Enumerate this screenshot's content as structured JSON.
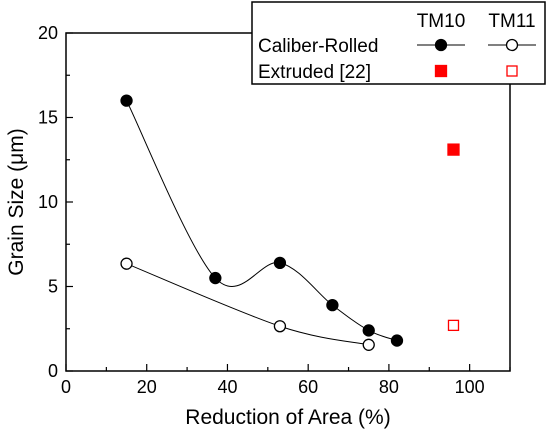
{
  "chart_data": {
    "type": "scatter",
    "xlabel": "Reduction of Area (%)",
    "ylabel": "Grain Size (μm)",
    "xlim": [
      0,
      110
    ],
    "ylim": [
      0,
      20
    ],
    "xticks": [
      0,
      20,
      40,
      60,
      80,
      100
    ],
    "yticks": [
      0,
      5,
      10,
      15,
      20
    ],
    "grid": false,
    "legend_position": "top-right",
    "legend": {
      "columns": [
        "TM10",
        "TM11"
      ],
      "rows": [
        "Caliber-Rolled",
        "Extruded [22]"
      ]
    },
    "series": [
      {
        "material": "TM10",
        "process": "Caliber-Rolled",
        "marker": "filled-circle",
        "color": "#000000",
        "smooth_line": true,
        "x": [
          15,
          37,
          53,
          66,
          75,
          82
        ],
        "y": [
          16.0,
          5.5,
          6.4,
          3.9,
          2.4,
          1.8
        ]
      },
      {
        "material": "TM11",
        "process": "Caliber-Rolled",
        "marker": "open-circle",
        "color": "#000000",
        "smooth_line": true,
        "x": [
          15,
          53,
          75
        ],
        "y": [
          6.35,
          2.65,
          1.55
        ]
      },
      {
        "material": "TM10",
        "process": "Extruded [22]",
        "marker": "filled-square",
        "color": "#ff0000",
        "smooth_line": false,
        "x": [
          96
        ],
        "y": [
          13.1
        ]
      },
      {
        "material": "TM11",
        "process": "Extruded [22]",
        "marker": "open-square",
        "color": "#ff0000",
        "smooth_line": false,
        "x": [
          96
        ],
        "y": [
          2.7
        ]
      }
    ]
  }
}
